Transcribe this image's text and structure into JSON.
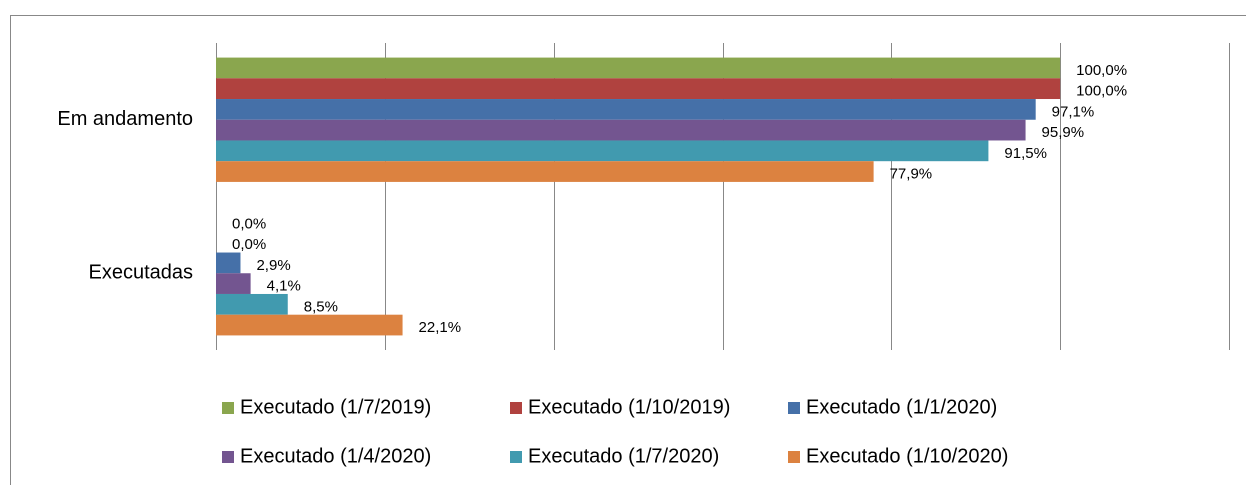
{
  "chart_data": {
    "type": "hbar",
    "categories": [
      "Em andamento",
      "Executadas"
    ],
    "series": [
      {
        "name": "Executado (1/7/2019)",
        "color": "#8aa64e",
        "values": [
          100.0,
          0.0
        ],
        "value_labels": [
          "100,0%",
          "0,0%"
        ]
      },
      {
        "name": "Executado (1/10/2019)",
        "color": "#b0423f",
        "values": [
          100.0,
          0.0
        ],
        "value_labels": [
          "100,0%",
          "0,0%"
        ]
      },
      {
        "name": "Executado (1/1/2020)",
        "color": "#4570a8",
        "values": [
          97.1,
          2.9
        ],
        "value_labels": [
          "97,1%",
          "2,9%"
        ]
      },
      {
        "name": "Executado (1/4/2020)",
        "color": "#735590",
        "values": [
          95.9,
          4.1
        ],
        "value_labels": [
          "95,9%",
          "4,1%"
        ]
      },
      {
        "name": "Executado (1/7/2020)",
        "color": "#419aaf",
        "values": [
          91.5,
          8.5
        ],
        "value_labels": [
          "91,5%",
          "8,5%"
        ]
      },
      {
        "name": "Executado (1/10/2020)",
        "color": "#dc8240",
        "values": [
          77.9,
          22.1
        ],
        "value_labels": [
          "77,9%",
          "22,1%"
        ]
      }
    ],
    "xlim": [
      0,
      120
    ],
    "xticks": [
      0,
      20,
      40,
      60,
      80,
      100,
      120
    ],
    "grid": true,
    "legend": "bottom"
  }
}
